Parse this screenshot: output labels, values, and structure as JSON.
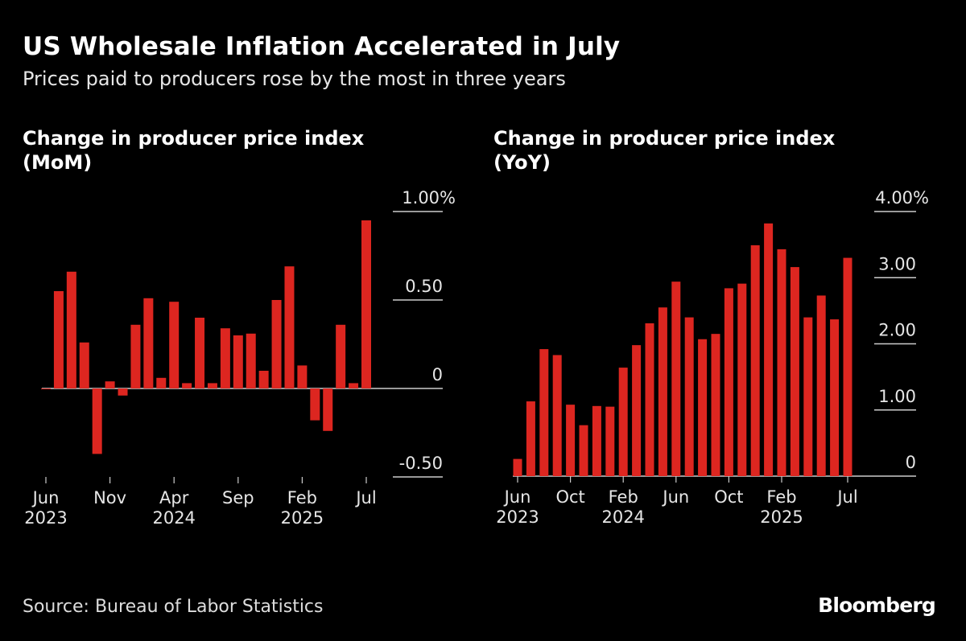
{
  "title": "US Wholesale Inflation Accelerated in July",
  "subtitle": "Prices paid to producers rose by the most in three years",
  "source": "Source: Bureau of Labor Statistics",
  "logo": "Bloomberg",
  "colors": {
    "bar": "#dd2620",
    "background": "#000000",
    "axis": "#cccccc"
  },
  "chart_data": [
    {
      "type": "bar",
      "title": "Change in producer price index (MoM)",
      "title_lines": [
        "Change in producer price index",
        "(MoM)"
      ],
      "categories": [
        "2023-06",
        "2023-07",
        "2023-08",
        "2023-09",
        "2023-10",
        "2023-11",
        "2023-12",
        "2024-01",
        "2024-02",
        "2024-03",
        "2024-04",
        "2024-05",
        "2024-06",
        "2024-07",
        "2024-08",
        "2024-09",
        "2024-10",
        "2024-11",
        "2024-12",
        "2025-01",
        "2025-02",
        "2025-03",
        "2025-04",
        "2025-05",
        "2025-06",
        "2025-07"
      ],
      "values": [
        0.0,
        0.55,
        0.66,
        0.26,
        -0.37,
        0.04,
        -0.04,
        0.36,
        0.51,
        0.06,
        0.49,
        0.03,
        0.4,
        0.03,
        0.34,
        0.3,
        0.31,
        0.1,
        0.5,
        0.69,
        0.13,
        -0.18,
        -0.24,
        0.36,
        0.03,
        0.95
      ],
      "ylim": [
        -0.5,
        1.0
      ],
      "yticks": [
        {
          "value": 1.0,
          "label": "1.00%"
        },
        {
          "value": 0.5,
          "label": "0.50"
        },
        {
          "value": 0,
          "label": "0"
        },
        {
          "value": -0.5,
          "label": "-0.50"
        }
      ],
      "xticks": [
        {
          "index": 0,
          "month": "Jun",
          "year": "2023"
        },
        {
          "index": 5,
          "month": "Nov",
          "year": ""
        },
        {
          "index": 10,
          "month": "Apr",
          "year": "2024"
        },
        {
          "index": 15,
          "month": "Sep",
          "year": ""
        },
        {
          "index": 20,
          "month": "Feb",
          "year": "2025"
        },
        {
          "index": 25,
          "month": "Jul",
          "year": ""
        }
      ],
      "grid": true,
      "axis_side": "right"
    },
    {
      "type": "bar",
      "title": "Change in producer price index (YoY)",
      "title_lines": [
        "Change in producer price index",
        "(YoY)"
      ],
      "categories": [
        "2023-06",
        "2023-07",
        "2023-08",
        "2023-09",
        "2023-10",
        "2023-11",
        "2023-12",
        "2024-01",
        "2024-02",
        "2024-03",
        "2024-04",
        "2024-05",
        "2024-06",
        "2024-07",
        "2024-08",
        "2024-09",
        "2024-10",
        "2024-11",
        "2024-12",
        "2025-01",
        "2025-02",
        "2025-03",
        "2025-04",
        "2025-05",
        "2025-06",
        "2025-07"
      ],
      "values": [
        0.26,
        1.13,
        1.92,
        1.83,
        1.08,
        0.77,
        1.06,
        1.05,
        1.64,
        1.98,
        2.31,
        2.55,
        2.94,
        2.4,
        2.07,
        2.15,
        2.84,
        2.91,
        3.49,
        3.82,
        3.43,
        3.16,
        2.4,
        2.73,
        2.37,
        3.3
      ],
      "ylim": [
        0,
        4.0
      ],
      "yticks": [
        {
          "value": 4.0,
          "label": "4.00%"
        },
        {
          "value": 3.0,
          "label": "3.00"
        },
        {
          "value": 2.0,
          "label": "2.00"
        },
        {
          "value": 1.0,
          "label": "1.00"
        },
        {
          "value": 0,
          "label": "0"
        }
      ],
      "xticks": [
        {
          "index": 0,
          "month": "Jun",
          "year": "2023"
        },
        {
          "index": 4,
          "month": "Oct",
          "year": ""
        },
        {
          "index": 8,
          "month": "Feb",
          "year": "2024"
        },
        {
          "index": 12,
          "month": "Jun",
          "year": ""
        },
        {
          "index": 16,
          "month": "Oct",
          "year": ""
        },
        {
          "index": 20,
          "month": "Feb",
          "year": "2025"
        },
        {
          "index": 25,
          "month": "Jul",
          "year": ""
        }
      ],
      "grid": true,
      "axis_side": "right"
    }
  ]
}
